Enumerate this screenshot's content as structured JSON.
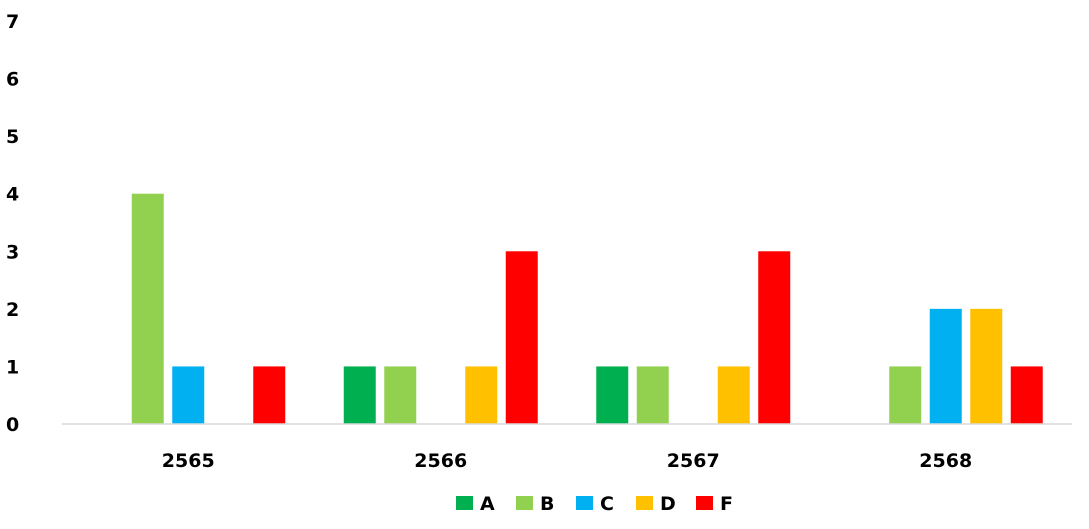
{
  "chart_data": {
    "type": "bar",
    "categories": [
      "2565",
      "2566",
      "2567",
      "2568"
    ],
    "series": [
      {
        "name": "A",
        "values": [
          0,
          1,
          1,
          0
        ],
        "color": "#00B050"
      },
      {
        "name": "B",
        "values": [
          4,
          1,
          1,
          1
        ],
        "color": "#92D050"
      },
      {
        "name": "C",
        "values": [
          1,
          0,
          0,
          2
        ],
        "color": "#00B0F0"
      },
      {
        "name": "D",
        "values": [
          0,
          1,
          1,
          2
        ],
        "color": "#FFC000"
      },
      {
        "name": "F",
        "values": [
          1,
          3,
          3,
          1
        ],
        "color": "#FF0000"
      }
    ],
    "ylim": [
      0,
      7
    ],
    "yticks": [
      "0",
      "1",
      "2",
      "3",
      "4",
      "5",
      "6",
      "7"
    ],
    "grid": false,
    "legend_position": "bottom"
  }
}
